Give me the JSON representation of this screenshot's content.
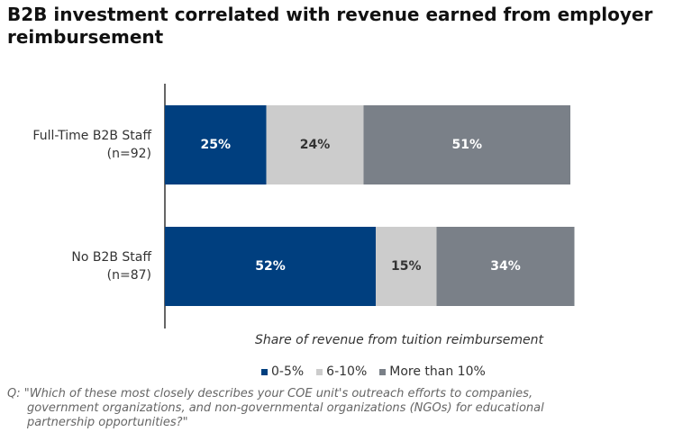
{
  "chart_data": {
    "type": "stacked-bar-horizontal",
    "title": "B2B investment correlated with revenue earned from employer reimbursement",
    "x_label": "Share of revenue from tuition reimbursement",
    "categories": [
      "Full-Time B2B Staff\n(n=92)",
      "No B2B Staff\n(n=87)"
    ],
    "xlim": [
      0,
      100
    ],
    "series": [
      {
        "name": "0-5%",
        "color": "#003f7f",
        "label_color": "#ffffff",
        "values": [
          25,
          52
        ],
        "value_labels": [
          "25%",
          "52%"
        ]
      },
      {
        "name": "6-10%",
        "color": "#cccccc",
        "label_color": "#333333",
        "values": [
          24,
          15
        ],
        "value_labels": [
          "24%",
          "15%"
        ]
      },
      {
        "name": "More than 10%",
        "color": "#7a8088",
        "label_color": "#ffffff",
        "values": [
          51,
          34
        ],
        "value_labels": [
          "51%",
          "34%"
        ]
      }
    ],
    "note": "Q: \"Which of these most closely describes your COE unit's outreach efforts to companies, government organizations, and non-governmental organizations (NGOs) for educational partnership opportunities?\""
  }
}
